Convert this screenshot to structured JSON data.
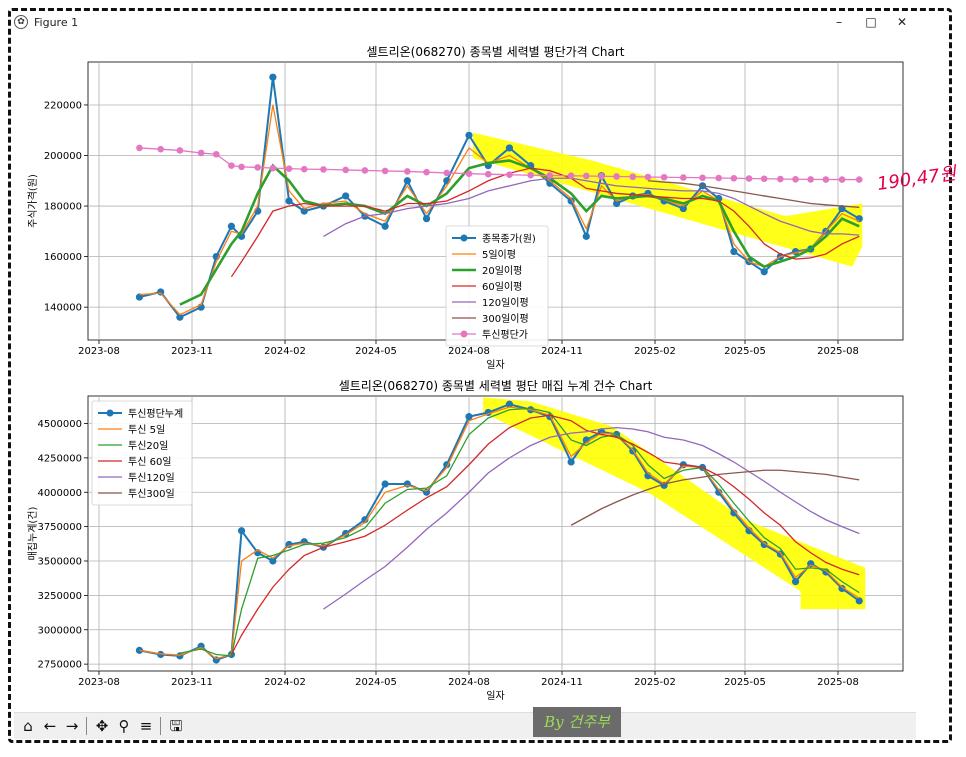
{
  "window": {
    "title": "Figure 1",
    "minimize_glyph": "–",
    "maximize_glyph": "□",
    "close_glyph": "✕"
  },
  "annotation": {
    "handwritten_value": "190,47원",
    "stamp_text": "By 건주부",
    "highlight_color": "#ffff00",
    "marker_color": "#e0004a"
  },
  "toolbar": {
    "icons": [
      "home-icon",
      "back-arrow-icon",
      "forward-arrow-icon",
      "pan-icon",
      "zoom-icon",
      "configure-subplots-icon",
      "save-icon"
    ],
    "glyphs": [
      "⌂",
      "←",
      "→",
      "✥",
      "⚲",
      "≡",
      "🖫"
    ]
  },
  "chart_data": [
    {
      "type": "line",
      "title": "셀트리온(068270) 종목별 세력별 평단가격 Chart",
      "xlabel": "일자",
      "ylabel": "주식가격(원)",
      "x_ticks": [
        "2023-08",
        "2023-11",
        "2024-02",
        "2024-05",
        "2024-08",
        "2024-11",
        "2025-02",
        "2025-05",
        "2025-08"
      ],
      "y_ticks": [
        "140000",
        "160000",
        "180000",
        "200000",
        "220000"
      ],
      "ylim": [
        127000,
        237000
      ],
      "grid": true,
      "legend_position": "center",
      "x": [
        "2023-09-10",
        "2023-10-01",
        "2023-10-20",
        "2023-11-10",
        "2023-11-25",
        "2023-12-10",
        "2023-12-20",
        "2024-01-05",
        "2024-01-20",
        "2024-02-05",
        "2024-02-20",
        "2024-03-10",
        "2024-04-01",
        "2024-04-20",
        "2024-05-10",
        "2024-06-01",
        "2024-06-20",
        "2024-07-10",
        "2024-08-01",
        "2024-08-20",
        "2024-09-10",
        "2024-10-01",
        "2024-10-20",
        "2024-11-10",
        "2024-11-25",
        "2024-12-10",
        "2024-12-25",
        "2025-01-10",
        "2025-01-25",
        "2025-02-10",
        "2025-03-01",
        "2025-03-20",
        "2025-04-05",
        "2025-04-20",
        "2025-05-05",
        "2025-05-20",
        "2025-06-05",
        "2025-06-20",
        "2025-07-05",
        "2025-07-20",
        "2025-08-05",
        "2025-08-22"
      ],
      "series": [
        {
          "name": "종목종가(원)",
          "color": "#1f77b4",
          "values": [
            144000,
            146000,
            136000,
            140000,
            160000,
            172000,
            168000,
            178000,
            231000,
            182000,
            178000,
            180000,
            184000,
            176000,
            172000,
            190000,
            175000,
            190000,
            208000,
            196000,
            203000,
            196000,
            189000,
            182000,
            168000,
            192000,
            181000,
            184000,
            185000,
            182000,
            179000,
            188000,
            183000,
            162000,
            158000,
            154000,
            160000,
            162000,
            163000,
            170000,
            179000,
            175000
          ]
        },
        {
          "name": "5일이평",
          "color": "#ff7f0e",
          "values": [
            145000,
            145500,
            137000,
            141000,
            158000,
            170000,
            169000,
            180000,
            220000,
            186000,
            179000,
            181000,
            182000,
            177000,
            174000,
            188000,
            177000,
            188000,
            203000,
            197000,
            200000,
            195000,
            190000,
            183000,
            171000,
            188000,
            182000,
            184000,
            184500,
            182500,
            180000,
            186000,
            182000,
            165000,
            158000,
            156000,
            160000,
            161500,
            163000,
            170000,
            177000,
            174000
          ]
        },
        {
          "name": "20일이평",
          "color": "#2ca02c",
          "values": [
            null,
            null,
            141000,
            145000,
            155000,
            165000,
            170000,
            185000,
            196000,
            190000,
            182000,
            180000,
            181000,
            180000,
            177000,
            184000,
            180000,
            185000,
            195000,
            197000,
            198000,
            195000,
            191000,
            185000,
            178000,
            184000,
            183000,
            183500,
            184000,
            183000,
            181000,
            184000,
            182000,
            170000,
            160000,
            156000,
            158000,
            160000,
            163000,
            168000,
            175000,
            172000
          ]
        },
        {
          "name": "60일이평",
          "color": "#d62728",
          "values": [
            null,
            null,
            null,
            null,
            null,
            152000,
            158000,
            168000,
            178000,
            180000,
            181000,
            180000,
            180000,
            180000,
            178000,
            181000,
            181000,
            182000,
            186000,
            190000,
            193000,
            195000,
            194000,
            191000,
            187000,
            186000,
            185000,
            184500,
            184000,
            183500,
            183000,
            183000,
            182000,
            178000,
            172000,
            165000,
            161000,
            159000,
            159500,
            161000,
            165000,
            168000
          ]
        },
        {
          "name": "120일이평",
          "color": "#9467bd",
          "values": [
            null,
            null,
            null,
            null,
            null,
            null,
            null,
            null,
            null,
            null,
            null,
            168000,
            173000,
            176000,
            177000,
            179000,
            180000,
            181000,
            183000,
            186000,
            188000,
            190000,
            191000,
            191000,
            190000,
            189000,
            188000,
            187500,
            187000,
            186500,
            186000,
            186000,
            185000,
            183000,
            180000,
            177000,
            174000,
            172000,
            170000,
            169000,
            169000,
            168500
          ]
        },
        {
          "name": "300일이평",
          "color": "#8c564b",
          "values": [
            null,
            null,
            null,
            null,
            null,
            null,
            null,
            null,
            null,
            null,
            null,
            null,
            null,
            null,
            null,
            null,
            null,
            null,
            null,
            null,
            null,
            null,
            null,
            null,
            null,
            null,
            null,
            null,
            190000,
            189500,
            189000,
            188000,
            187000,
            186000,
            185000,
            184000,
            183000,
            182000,
            181000,
            180500,
            180000,
            179500
          ]
        },
        {
          "name": "투신평단가",
          "color": "#e377c2",
          "values": [
            203000,
            202500,
            202000,
            201000,
            200500,
            196000,
            195500,
            195300,
            195000,
            194800,
            194600,
            194500,
            194300,
            194100,
            193900,
            193700,
            193400,
            193100,
            192800,
            192600,
            192400,
            192200,
            192100,
            192000,
            191900,
            191800,
            191700,
            191600,
            191500,
            191400,
            191300,
            191200,
            191100,
            191000,
            190900,
            190800,
            190700,
            190600,
            190550,
            190500,
            190480,
            190470
          ]
        }
      ]
    },
    {
      "type": "line",
      "title": "셀트리온(068270) 종목별 세력별 평단 매집 누계 건수 Chart",
      "xlabel": "일자",
      "ylabel": "매집누계(건)",
      "x_ticks": [
        "2023-08",
        "2023-11",
        "2024-02",
        "2024-05",
        "2024-08",
        "2024-11",
        "2025-02",
        "2025-05",
        "2025-08"
      ],
      "y_ticks": [
        "2750000",
        "3000000",
        "3250000",
        "3500000",
        "3750000",
        "4000000",
        "4250000",
        "4500000"
      ],
      "ylim": [
        2700000,
        4700000
      ],
      "grid": true,
      "legend_position": "upper left",
      "x": [
        "2023-09-10",
        "2023-10-01",
        "2023-10-20",
        "2023-11-10",
        "2023-11-25",
        "2023-12-10",
        "2023-12-20",
        "2024-01-05",
        "2024-01-20",
        "2024-02-05",
        "2024-02-20",
        "2024-03-10",
        "2024-04-01",
        "2024-04-20",
        "2024-05-10",
        "2024-06-01",
        "2024-06-20",
        "2024-07-10",
        "2024-08-01",
        "2024-08-20",
        "2024-09-10",
        "2024-10-01",
        "2024-10-20",
        "2024-11-10",
        "2024-11-25",
        "2024-12-10",
        "2024-12-25",
        "2025-01-10",
        "2025-01-25",
        "2025-02-10",
        "2025-03-01",
        "2025-03-20",
        "2025-04-05",
        "2025-04-20",
        "2025-05-05",
        "2025-05-20",
        "2025-06-05",
        "2025-06-20",
        "2025-07-05",
        "2025-07-20",
        "2025-08-05",
        "2025-08-22"
      ],
      "series": [
        {
          "name": "투신평단누계",
          "color": "#1f77b4",
          "values": [
            2850000,
            2820000,
            2810000,
            2880000,
            2780000,
            2820000,
            3720000,
            3560000,
            3500000,
            3620000,
            3640000,
            3600000,
            3700000,
            3800000,
            4060000,
            4060000,
            4000000,
            4200000,
            4550000,
            4580000,
            4640000,
            4600000,
            4550000,
            4220000,
            4380000,
            4440000,
            4420000,
            4300000,
            4120000,
            4050000,
            4200000,
            4180000,
            4000000,
            3850000,
            3720000,
            3620000,
            3550000,
            3350000,
            3480000,
            3420000,
            3300000,
            3210000
          ]
        },
        {
          "name": "투신 5일",
          "color": "#ff7f0e",
          "values": [
            2850000,
            2825000,
            2815000,
            2870000,
            2790000,
            2820000,
            3500000,
            3580000,
            3520000,
            3610000,
            3630000,
            3610000,
            3690000,
            3780000,
            4000000,
            4050000,
            4010000,
            4180000,
            4520000,
            4570000,
            4620000,
            4600000,
            4560000,
            4260000,
            4360000,
            4430000,
            4420000,
            4310000,
            4140000,
            4060000,
            4190000,
            4180000,
            4020000,
            3870000,
            3740000,
            3630000,
            3560000,
            3380000,
            3470000,
            3430000,
            3310000,
            3230000
          ]
        },
        {
          "name": "투신20일",
          "color": "#2ca02c",
          "values": [
            null,
            null,
            2830000,
            2860000,
            2820000,
            2810000,
            3150000,
            3520000,
            3540000,
            3580000,
            3620000,
            3630000,
            3670000,
            3740000,
            3920000,
            4020000,
            4030000,
            4120000,
            4420000,
            4540000,
            4600000,
            4610000,
            4580000,
            4380000,
            4340000,
            4400000,
            4420000,
            4340000,
            4200000,
            4100000,
            4160000,
            4180000,
            4060000,
            3920000,
            3790000,
            3670000,
            3590000,
            3440000,
            3450000,
            3440000,
            3350000,
            3270000
          ]
        },
        {
          "name": "투신 60일",
          "color": "#d62728",
          "values": [
            null,
            null,
            null,
            null,
            null,
            2820000,
            2960000,
            3150000,
            3310000,
            3440000,
            3540000,
            3600000,
            3640000,
            3680000,
            3760000,
            3870000,
            3960000,
            4040000,
            4200000,
            4350000,
            4470000,
            4540000,
            4560000,
            4520000,
            4450000,
            4420000,
            4400000,
            4350000,
            4290000,
            4220000,
            4200000,
            4180000,
            4120000,
            4040000,
            3950000,
            3850000,
            3760000,
            3640000,
            3560000,
            3490000,
            3440000,
            3400000
          ]
        },
        {
          "name": "투신120일",
          "color": "#9467bd",
          "values": [
            null,
            null,
            null,
            null,
            null,
            null,
            null,
            null,
            null,
            null,
            null,
            3150000,
            3260000,
            3360000,
            3460000,
            3600000,
            3730000,
            3850000,
            4000000,
            4140000,
            4250000,
            4340000,
            4400000,
            4430000,
            4440000,
            4460000,
            4470000,
            4460000,
            4440000,
            4400000,
            4380000,
            4340000,
            4280000,
            4220000,
            4150000,
            4080000,
            4000000,
            3930000,
            3860000,
            3800000,
            3750000,
            3700000
          ]
        },
        {
          "name": "투신300일",
          "color": "#8c564b",
          "values": [
            null,
            null,
            null,
            null,
            null,
            null,
            null,
            null,
            null,
            null,
            null,
            null,
            null,
            null,
            null,
            null,
            null,
            null,
            null,
            null,
            null,
            null,
            null,
            3760000,
            3820000,
            3880000,
            3930000,
            3980000,
            4020000,
            4060000,
            4090000,
            4110000,
            4130000,
            4140000,
            4150000,
            4160000,
            4160000,
            4150000,
            4140000,
            4130000,
            4110000,
            4090000
          ]
        }
      ]
    }
  ]
}
